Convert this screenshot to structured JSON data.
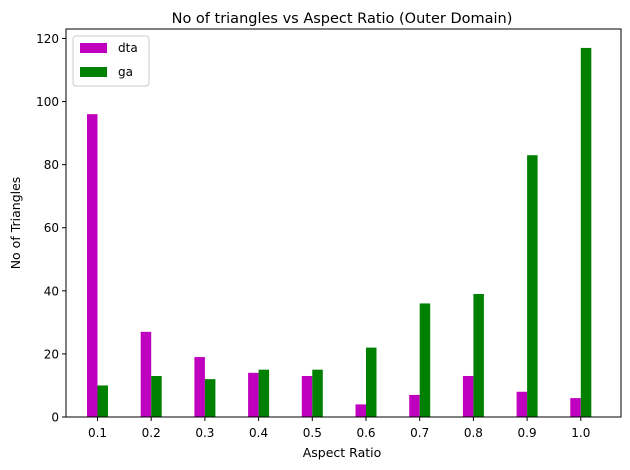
{
  "chart_data": {
    "type": "bar",
    "title": "No of triangles vs Aspect Ratio (Outer Domain)",
    "xlabel": "Aspect Ratio",
    "ylabel": "No of Triangles",
    "categories": [
      "0.1",
      "0.2",
      "0.3",
      "0.4",
      "0.5",
      "0.6",
      "0.7",
      "0.8",
      "0.9",
      "1.0"
    ],
    "series": [
      {
        "name": "dta",
        "color": "#bf00bf",
        "values": [
          96,
          27,
          19,
          14,
          13,
          4,
          7,
          13,
          8,
          6
        ]
      },
      {
        "name": "ga",
        "color": "#008000",
        "values": [
          10,
          13,
          12,
          15,
          15,
          22,
          36,
          39,
          83,
          117
        ]
      }
    ],
    "ylim": [
      0,
      123
    ],
    "yticks": [
      0,
      20,
      40,
      60,
      80,
      100,
      120
    ],
    "grid": false,
    "legend_position": "top-left"
  }
}
